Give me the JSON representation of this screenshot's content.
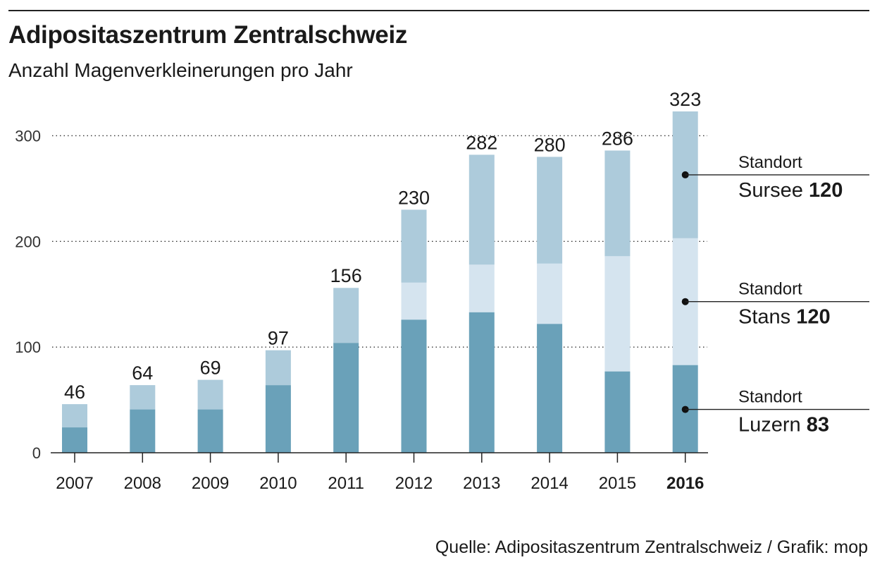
{
  "header": {
    "title": "Adipositaszentrum Zentralschweiz",
    "subtitle": "Anzahl Magenverkleinerungen pro Jahr"
  },
  "footer": {
    "source": "Quelle: Adipositaszentrum Zentralschweiz / Grafik: mop"
  },
  "colors": {
    "luzern": "#6aa1b9",
    "stans": "#d5e4ef",
    "sursee": "#adcbdb",
    "text": "#1a1a1a"
  },
  "chart_data": {
    "type": "bar",
    "stacked": true,
    "title": "Adipositaszentrum Zentralschweiz",
    "subtitle": "Anzahl Magenverkleinerungen pro Jahr",
    "xlabel": "",
    "ylabel": "",
    "ylim": [
      0,
      323
    ],
    "yticks": [
      0,
      100,
      200,
      300
    ],
    "grid": "dotted horizontal",
    "categories": [
      "2007",
      "2008",
      "2009",
      "2010",
      "2011",
      "2012",
      "2013",
      "2014",
      "2015",
      "2016"
    ],
    "highlight_category": "2016",
    "series": [
      {
        "name": "Luzern",
        "color_key": "luzern",
        "values": [
          24,
          41,
          41,
          64,
          104,
          126,
          133,
          122,
          77,
          83
        ]
      },
      {
        "name": "Stans",
        "color_key": "stans",
        "values": [
          0,
          0,
          0,
          0,
          0,
          35,
          45,
          57,
          109,
          120
        ]
      },
      {
        "name": "Sursee",
        "color_key": "sursee",
        "values": [
          22,
          23,
          28,
          33,
          52,
          69,
          104,
          101,
          100,
          120
        ]
      }
    ],
    "totals": [
      46,
      64,
      69,
      97,
      156,
      230,
      282,
      280,
      286,
      323
    ],
    "legend": [
      {
        "series": "Sursee",
        "label_top": "Standort",
        "label_name": "Sursee",
        "value": "120"
      },
      {
        "series": "Stans",
        "label_top": "Standort",
        "label_name": "Stans",
        "value": "120"
      },
      {
        "series": "Luzern",
        "label_top": "Standort",
        "label_name": "Luzern",
        "value": "83"
      }
    ]
  }
}
